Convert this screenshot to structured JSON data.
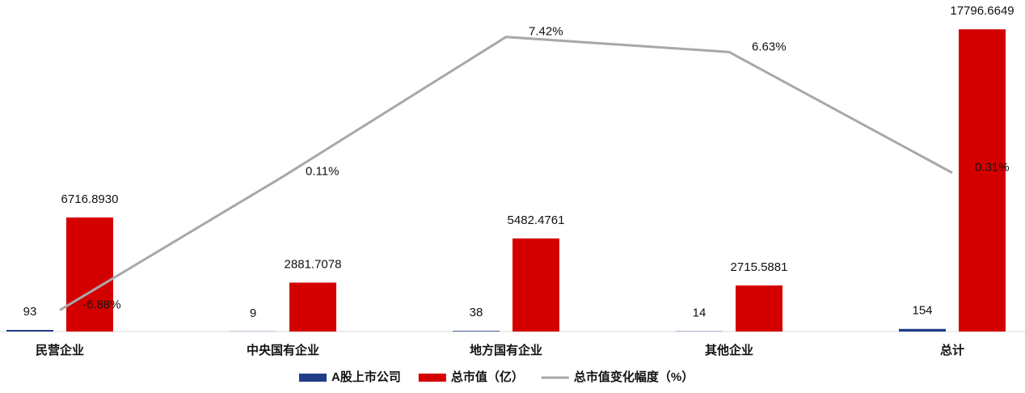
{
  "chart_data": {
    "type": "bar",
    "categories": [
      "民营企业",
      "中央国有企业",
      "地方国有企业",
      "其他企业",
      "总计"
    ],
    "series": [
      {
        "name": "A股上市公司",
        "color": "#1f3c88",
        "values": [
          93,
          9,
          38,
          14,
          154
        ],
        "value_labels": [
          "93",
          "9",
          "38",
          "14",
          "154"
        ]
      },
      {
        "name": "总市值（亿）",
        "color": "#d40000",
        "values": [
          6716.893,
          2881.7078,
          5482.4761,
          2715.5881,
          17796.6649
        ],
        "value_labels": [
          "6716.8930",
          "2881.7078",
          "5482.4761",
          "2715.5881",
          "17796.6649"
        ]
      },
      {
        "name": "总市值变化幅度（%）",
        "color": "#a8a8a8",
        "type": "line",
        "axis": "y2",
        "values": [
          -6.88,
          0.11,
          7.42,
          6.63,
          0.31
        ],
        "value_labels": [
          "-6.88%",
          "0.11%",
          "7.42%",
          "6.63%",
          "0.31%"
        ]
      }
    ],
    "ylim": [
      0,
      18000
    ],
    "y2lim": [
      -8,
      8
    ]
  }
}
